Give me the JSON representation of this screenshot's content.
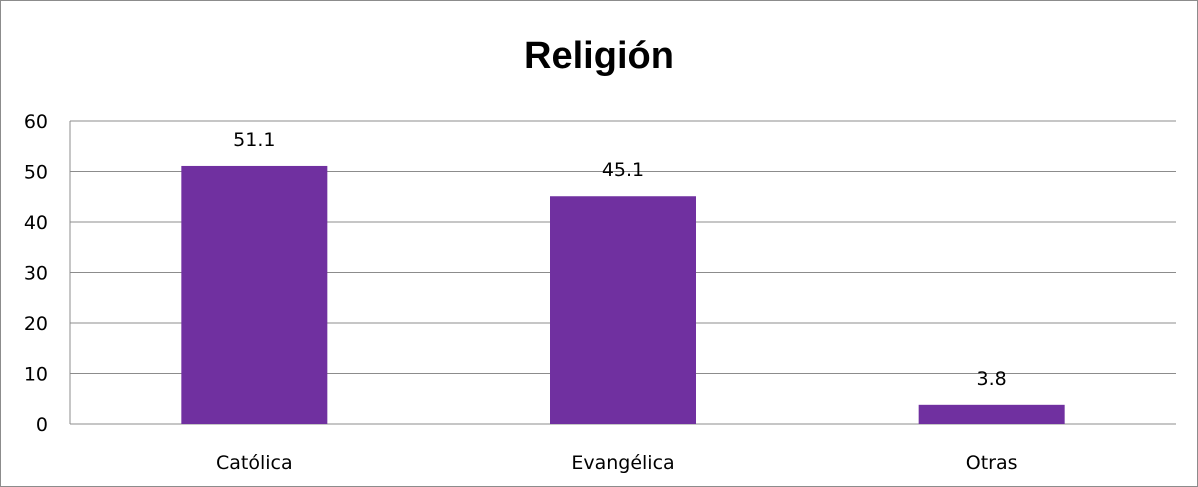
{
  "chart_data": {
    "type": "bar",
    "title": "Religión",
    "categories": [
      "Católica",
      "Evangélica",
      "Otras"
    ],
    "values": [
      51.1,
      45.1,
      3.8
    ],
    "data_labels": [
      "51.1",
      "45.1",
      "3.8"
    ],
    "y_ticks": [
      "0",
      "10",
      "20",
      "30",
      "40",
      "50",
      "60"
    ],
    "ylim": [
      0,
      60
    ],
    "grid": true,
    "legend": "none",
    "colors": {
      "bar": "#7030A0",
      "grid": "#8c8c8c",
      "border": "#8c8c8c"
    }
  }
}
